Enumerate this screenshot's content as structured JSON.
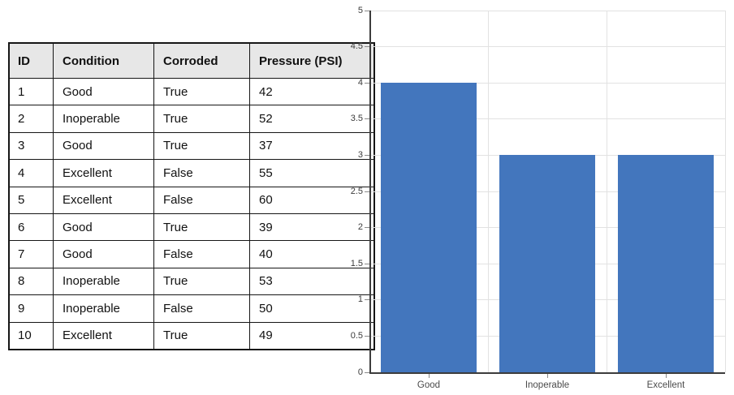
{
  "table": {
    "headers": [
      "ID",
      "Condition",
      "Corroded",
      "Pressure (PSI)"
    ],
    "rows": [
      [
        "1",
        "Good",
        "True",
        "42"
      ],
      [
        "2",
        "Inoperable",
        "True",
        "52"
      ],
      [
        "3",
        "Good",
        "True",
        "37"
      ],
      [
        "4",
        "Excellent",
        "False",
        "55"
      ],
      [
        "5",
        "Excellent",
        "False",
        "60"
      ],
      [
        "6",
        "Good",
        "True",
        "39"
      ],
      [
        "7",
        "Good",
        "False",
        "40"
      ],
      [
        "8",
        "Inoperable",
        "True",
        "53"
      ],
      [
        "9",
        "Inoperable",
        "False",
        "50"
      ],
      [
        "10",
        "Excellent",
        "True",
        "49"
      ]
    ]
  },
  "chart_data": {
    "type": "bar",
    "categories": [
      "Good",
      "Inoperable",
      "Excellent"
    ],
    "values": [
      4,
      3,
      3
    ],
    "title": "",
    "xlabel": "",
    "ylabel": "",
    "ylim": [
      0,
      5
    ],
    "ytick_step": 0.5,
    "grid": true,
    "legend": false,
    "bar_color": "#4376BD"
  },
  "colors": {
    "table_border": "#161616",
    "table_header_bg": "#e7e7e7",
    "gridline": "#e2e2e2",
    "axis": "#3c3c3c",
    "tick": "#8a8a8a",
    "y_label_text": "#3b3b3b",
    "x_label_text": "#4a4a4a",
    "bar": "#4376BD"
  }
}
